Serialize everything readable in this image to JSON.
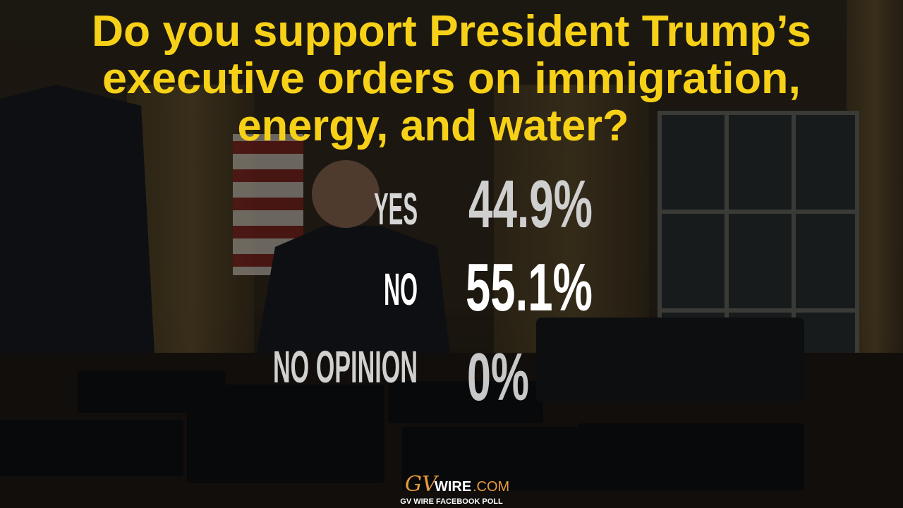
{
  "title": {
    "lines": [
      "Do you support President Trump’s",
      "executive orders on immigration,",
      "energy, and water?"
    ]
  },
  "results": [
    {
      "label": "YES",
      "value": "44.9%"
    },
    {
      "label": "NO",
      "value": "55.1%"
    },
    {
      "label": "NO OPINION",
      "value": "0%"
    }
  ],
  "logo": {
    "mark": "GV",
    "name": "WIRE",
    "suffix": ".COM"
  },
  "footer": "GV WIRE FACEBOOK POLL"
}
